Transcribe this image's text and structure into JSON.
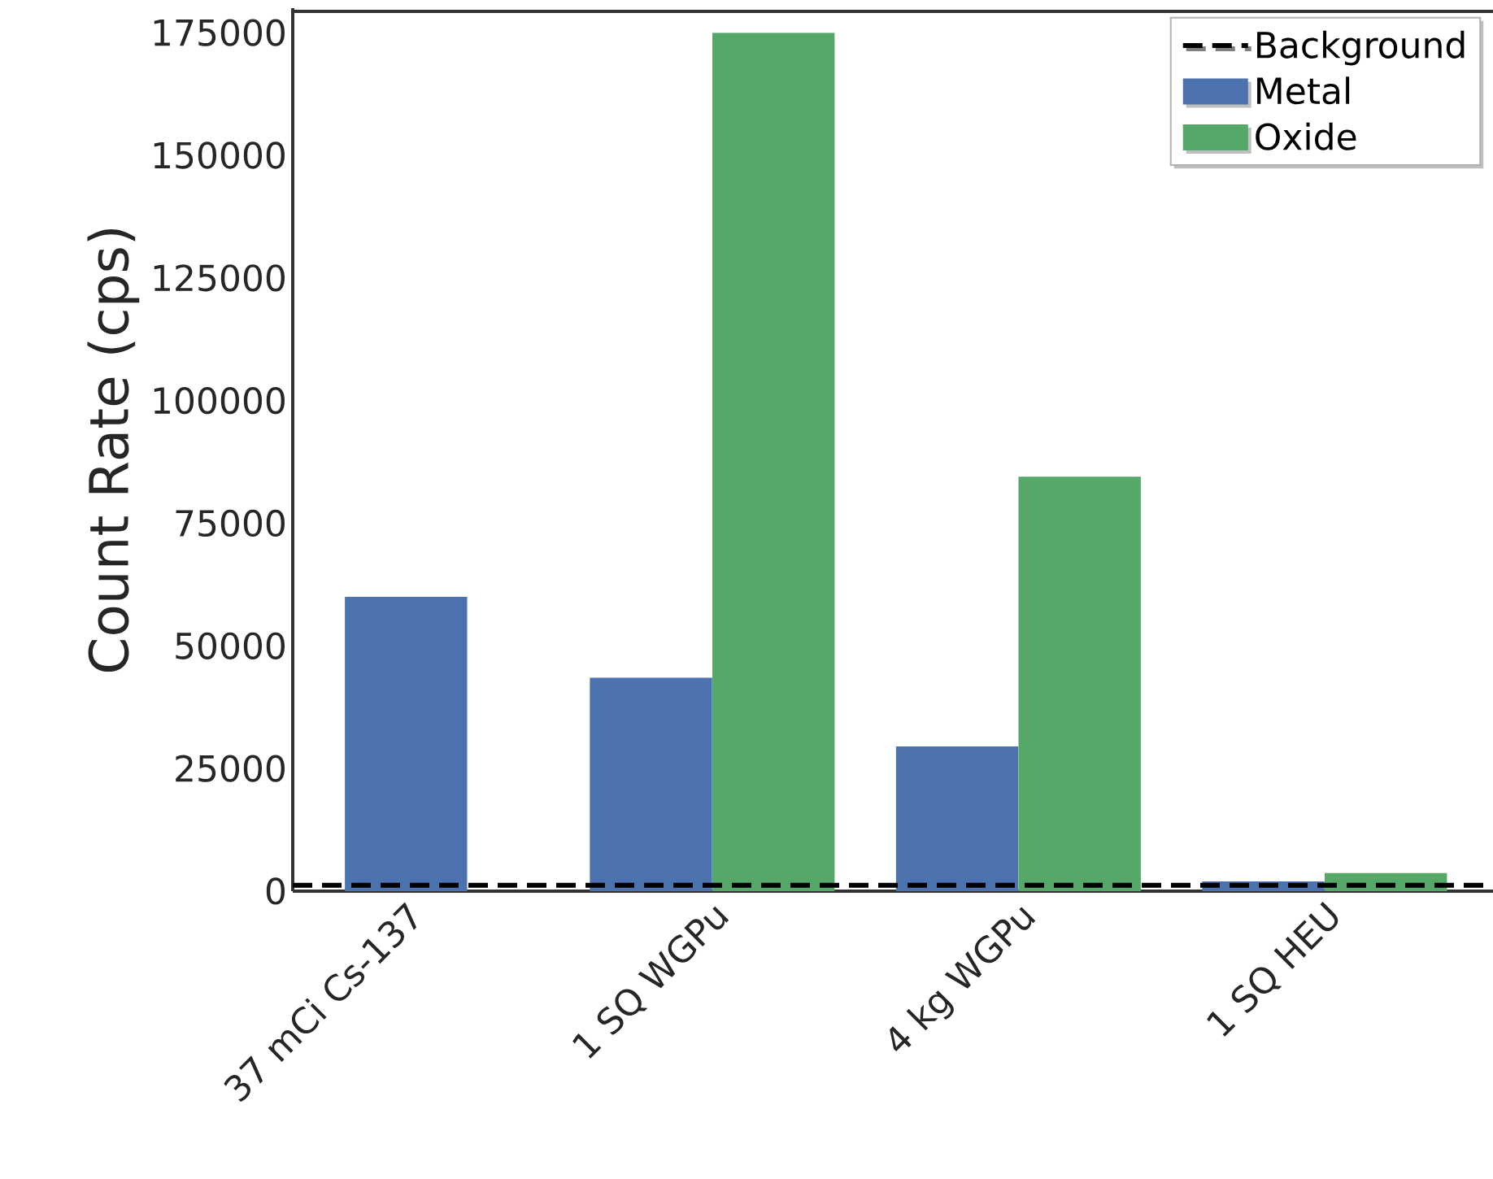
{
  "chart_data": {
    "type": "bar",
    "ylabel": "Count Rate (cps)",
    "categories": [
      "37 mCi Cs-137",
      "1 SQ WGPu",
      "4 kg WGPu",
      "1 SQ HEU"
    ],
    "series": [
      {
        "name": "Metal",
        "color": "#4c72b0",
        "values": [
          60000,
          43500,
          29500,
          2000
        ]
      },
      {
        "name": "Oxide",
        "color": "#55a868",
        "values": [
          null,
          175000,
          84500,
          3700
        ]
      }
    ],
    "ref_lines": [
      {
        "axis": "y",
        "value": 1200,
        "label": "Background",
        "color": "#000000",
        "line_style": "dashed"
      }
    ],
    "ylim": [
      0,
      180000
    ],
    "yticks": [
      0,
      25000,
      50000,
      75000,
      100000,
      125000,
      150000,
      175000
    ],
    "grid": false,
    "legend": "top right"
  }
}
